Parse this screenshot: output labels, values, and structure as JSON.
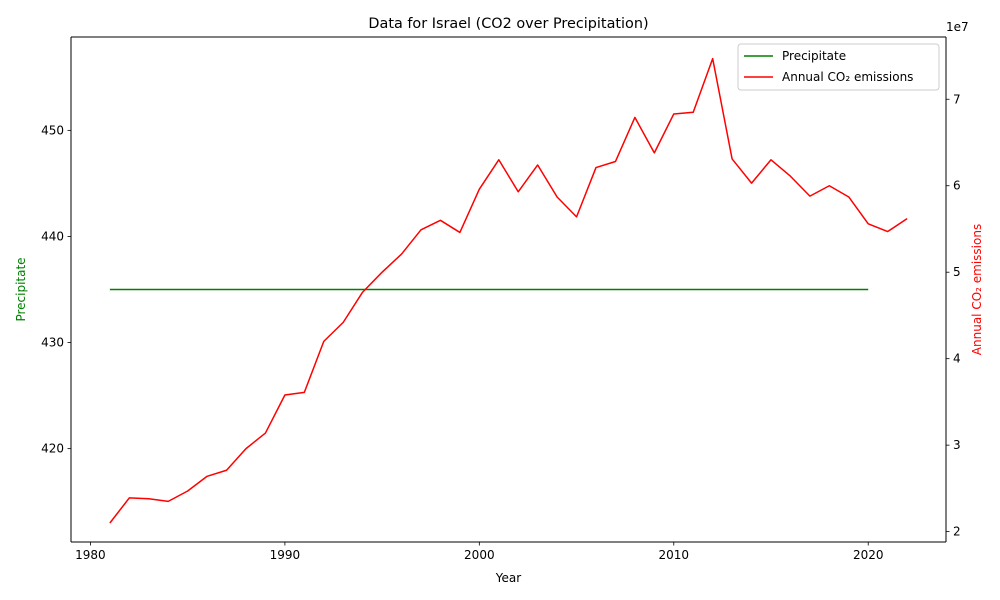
{
  "chart_data": {
    "type": "line",
    "title": "Data for Israel (CO2 over Precipitation)",
    "xlabel": "Year",
    "ylabel": "Precipitate",
    "ylabel_right": "Annual CO₂ emissions",
    "right_axis_multiplier_label": "1e7",
    "xlim": [
      1979,
      2024
    ],
    "ylim": [
      411.2,
      458.8
    ],
    "ylim_right": [
      18800000,
      77200000
    ],
    "x_ticks": [
      1980,
      1990,
      2000,
      2010,
      2020
    ],
    "y_ticks": [
      420,
      430,
      440,
      450
    ],
    "y_ticks_right": [
      2,
      3,
      4,
      5,
      6,
      7
    ],
    "legend_position": "top-right",
    "grid": false,
    "colors": {
      "precipitate": "#008000",
      "co2": "#ff0000"
    },
    "series": [
      {
        "name": "Precipitate",
        "axis": "left",
        "color": "#008000",
        "x": [
          1981,
          2020
        ],
        "values": [
          435,
          435
        ]
      },
      {
        "name": "Annual CO₂ emissions",
        "axis": "right",
        "color": "#ff0000",
        "x": [
          1981,
          1982,
          1983,
          1984,
          1985,
          1986,
          1987,
          1988,
          1989,
          1990,
          1991,
          1992,
          1993,
          1994,
          1995,
          1996,
          1997,
          1998,
          1999,
          2000,
          2001,
          2002,
          2003,
          2004,
          2005,
          2006,
          2007,
          2008,
          2009,
          2010,
          2011,
          2012,
          2013,
          2014,
          2015,
          2016,
          2017,
          2018,
          2019,
          2020,
          2021,
          2022
        ],
        "values": [
          21000000,
          23900000,
          23800000,
          23500000,
          24700000,
          26400000,
          27100000,
          29600000,
          31400000,
          35800000,
          36100000,
          42000000,
          44200000,
          47700000,
          50000000,
          52100000,
          54900000,
          56000000,
          54600000,
          59600000,
          63000000,
          59300000,
          62400000,
          58700000,
          56400000,
          62100000,
          62800000,
          67900000,
          63800000,
          68300000,
          68500000,
          74700000,
          63100000,
          60300000,
          63000000,
          61100000,
          58800000,
          60000000,
          58700000,
          55600000,
          54700000,
          56200000
        ]
      }
    ]
  }
}
